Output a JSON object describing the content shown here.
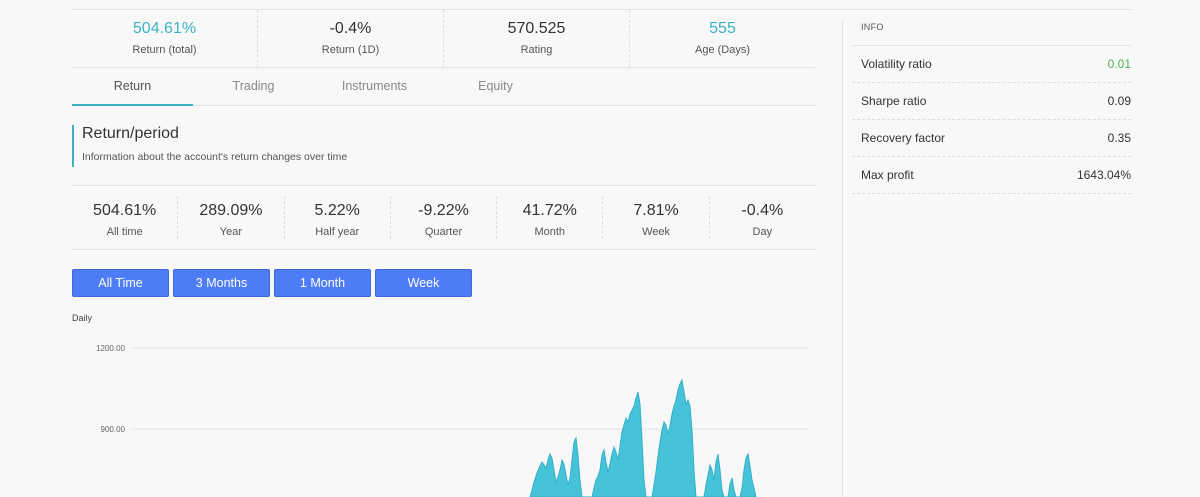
{
  "top_stats": [
    {
      "value": "504.61%",
      "label": "Return (total)",
      "accent": true
    },
    {
      "value": "-0.4%",
      "label": "Return (1D)",
      "accent": false
    },
    {
      "value": "570.525",
      "label": "Rating",
      "accent": false
    },
    {
      "value": "555",
      "label": "Age (Days)",
      "accent": true
    }
  ],
  "tabs": [
    "Return",
    "Trading",
    "Instruments",
    "Equity"
  ],
  "section": {
    "title": "Return/period",
    "description": "Information about the account's return changes over time"
  },
  "periods": [
    {
      "value": "504.61%",
      "label": "All time"
    },
    {
      "value": "289.09%",
      "label": "Year"
    },
    {
      "value": "5.22%",
      "label": "Half year"
    },
    {
      "value": "-9.22%",
      "label": "Quarter"
    },
    {
      "value": "41.72%",
      "label": "Month"
    },
    {
      "value": "7.81%",
      "label": "Week"
    },
    {
      "value": "-0.4%",
      "label": "Day"
    }
  ],
  "range_buttons": [
    "All Time",
    "3 Months",
    "1 Month",
    "Week"
  ],
  "chart": {
    "label": "Daily",
    "ticks": [
      "1200.00",
      "900.00"
    ]
  },
  "info": {
    "heading": "INFO",
    "rows": [
      {
        "key": "Volatility ratio",
        "value": "0.01",
        "green": true
      },
      {
        "key": "Sharpe ratio",
        "value": "0.09",
        "green": false
      },
      {
        "key": "Recovery factor",
        "value": "0.35",
        "green": false
      },
      {
        "key": "Max profit",
        "value": "1643.04%",
        "green": false
      }
    ]
  },
  "colors": {
    "accent": "#3bb3c3",
    "button": "#4d7cf6",
    "positive": "#52b04f",
    "area_fill": "#3ec0d8"
  }
}
